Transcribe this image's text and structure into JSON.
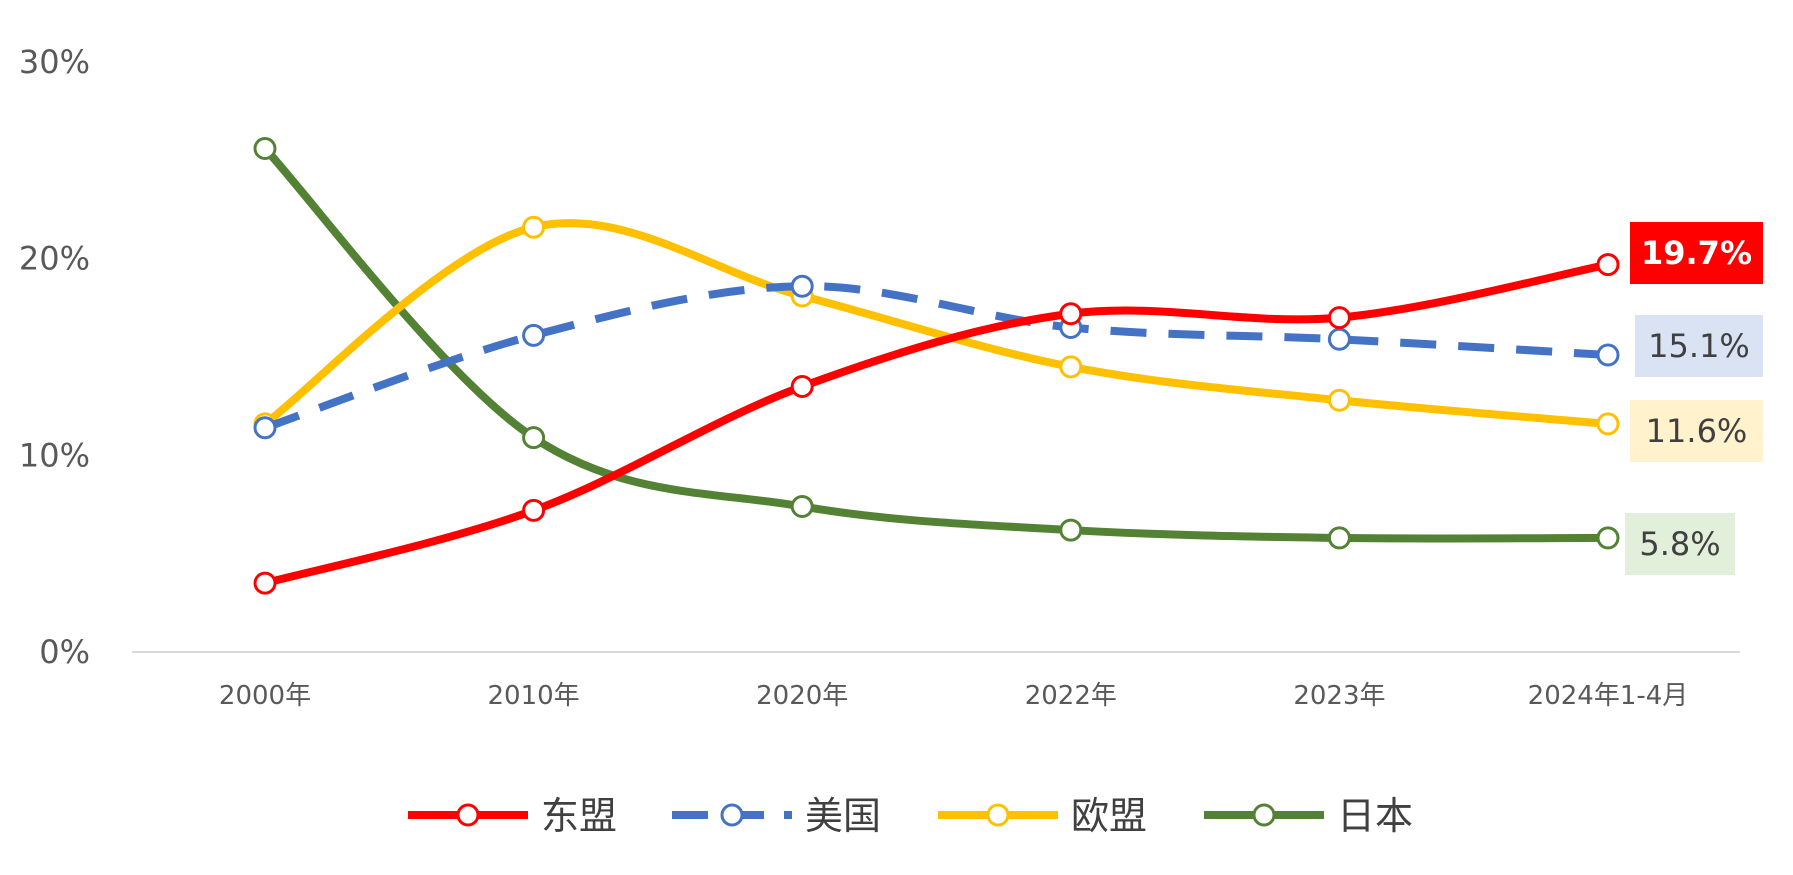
{
  "chart_data": {
    "type": "line",
    "categories": [
      "2000年",
      "2010年",
      "2020年",
      "2022年",
      "2023年",
      "2024年1-4月"
    ],
    "y_unit": "%",
    "ylim": [
      0,
      30
    ],
    "y_ticks": [
      "0%",
      "10%",
      "20%",
      "30%"
    ],
    "grid": false,
    "legend_position": "bottom",
    "smooth": true,
    "series": [
      {
        "name": "东盟",
        "color": "#ff0000",
        "dash": false,
        "values": [
          3.5,
          7.2,
          13.5,
          17.2,
          17.0,
          19.7
        ],
        "end_label": "19.7%",
        "end_label_bg": "#ff0000",
        "end_label_color": "#ffffff",
        "end_label_bold": true
      },
      {
        "name": "美国",
        "color": "#4472c4",
        "dash": true,
        "values": [
          11.4,
          16.1,
          18.6,
          16.5,
          15.9,
          15.1
        ],
        "end_label": "15.1%",
        "end_label_bg": "#dae3f3",
        "end_label_color": "#404040",
        "end_label_bold": false
      },
      {
        "name": "欧盟",
        "color": "#ffc000",
        "dash": false,
        "values": [
          11.6,
          21.6,
          18.1,
          14.5,
          12.8,
          11.6
        ],
        "end_label": "11.6%",
        "end_label_bg": "#fff2cc",
        "end_label_color": "#404040",
        "end_label_bold": false
      },
      {
        "name": "日本",
        "color": "#548235",
        "dash": false,
        "values": [
          25.6,
          10.9,
          7.4,
          6.2,
          5.8,
          5.8
        ],
        "end_label": "5.8%",
        "end_label_bg": "#e2efda",
        "end_label_color": "#404040",
        "end_label_bold": false
      }
    ]
  }
}
